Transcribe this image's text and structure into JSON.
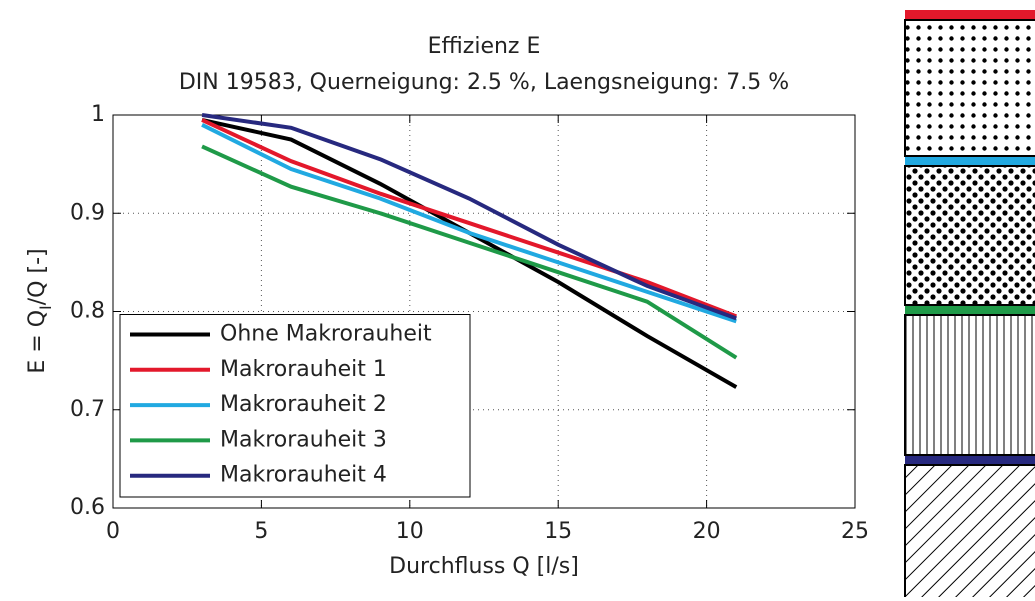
{
  "chart_data": {
    "type": "line",
    "title": "Effizienz  E",
    "subtitle": "DIN 19583, Querneigung: 2.5 %, Laengsneigung: 7.5 %",
    "xlabel": "Durchfluss  Q  [l/s]",
    "ylabel": {
      "main": "E = Q",
      "sub": "I",
      "rest": "/Q [-]"
    },
    "x": [
      3,
      6,
      9,
      12,
      15,
      18,
      21
    ],
    "series": [
      {
        "name": "Ohne Makrorauheit",
        "color": "#000000",
        "values": [
          0.995,
          0.975,
          0.93,
          0.88,
          0.83,
          0.775,
          0.723
        ]
      },
      {
        "name": "Makrorauheit 1",
        "color": "#e3182b",
        "values": [
          0.995,
          0.953,
          0.92,
          0.89,
          0.86,
          0.83,
          0.795
        ]
      },
      {
        "name": "Makrorauheit 2",
        "color": "#21a9e1",
        "values": [
          0.99,
          0.945,
          0.915,
          0.88,
          0.85,
          0.82,
          0.79
        ]
      },
      {
        "name": "Makrorauheit 3",
        "color": "#1f9a48",
        "values": [
          0.968,
          0.927,
          0.9,
          0.87,
          0.84,
          0.81,
          0.753
        ]
      },
      {
        "name": "Makrorauheit 4",
        "color": "#27297f",
        "values": [
          1.0,
          0.987,
          0.955,
          0.915,
          0.868,
          0.826,
          0.793
        ]
      }
    ],
    "xlim": [
      0,
      25
    ],
    "xticks": [
      0,
      5,
      10,
      15,
      20,
      25
    ],
    "ylim": [
      0.6,
      1
    ],
    "yticks": [
      0.6,
      0.7,
      0.8,
      0.9,
      1
    ],
    "grid": true,
    "legend": "lower left"
  }
}
